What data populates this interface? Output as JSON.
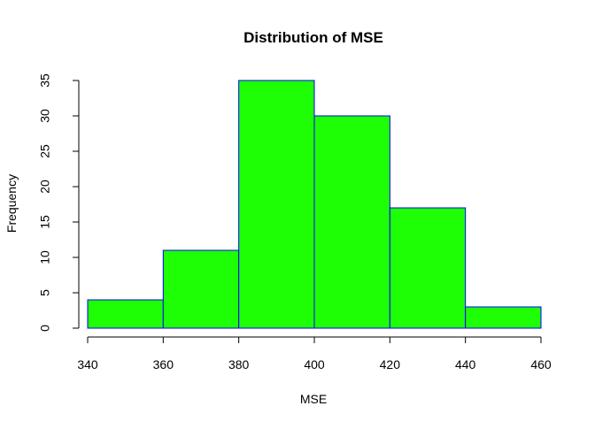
{
  "chart_data": {
    "type": "bar",
    "title": "Distribution of MSE",
    "xlabel": "MSE",
    "ylabel": "Frequency",
    "bins": [
      {
        "start": 340,
        "end": 360,
        "count": 4
      },
      {
        "start": 360,
        "end": 380,
        "count": 11
      },
      {
        "start": 380,
        "end": 400,
        "count": 35
      },
      {
        "start": 400,
        "end": 420,
        "count": 30
      },
      {
        "start": 420,
        "end": 440,
        "count": 17
      },
      {
        "start": 440,
        "end": 460,
        "count": 3
      }
    ],
    "xlim": [
      340,
      460
    ],
    "ylim": [
      0,
      35
    ],
    "xticks": [
      "340",
      "360",
      "380",
      "400",
      "420",
      "440",
      "460"
    ],
    "yticks": [
      "0",
      "5",
      "10",
      "15",
      "20",
      "25",
      "30",
      "35"
    ],
    "grid": false,
    "bar_fill": "#1eff06",
    "bar_stroke": "#0000ff",
    "axis_color": "#000000"
  }
}
